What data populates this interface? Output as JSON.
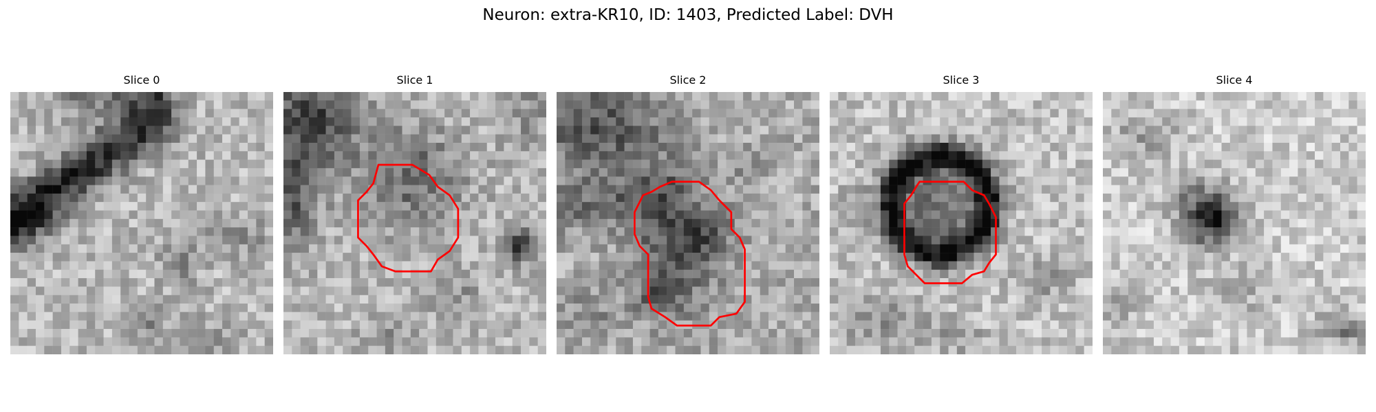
{
  "title": "Neuron: extra-KR10, ID: 1403, Predicted Label: DVH",
  "outline_color": "#ff0000",
  "slices": [
    {
      "label": "Slice 0",
      "has_outline": false
    },
    {
      "label": "Slice 1",
      "has_outline": true
    },
    {
      "label": "Slice 2",
      "has_outline": true
    },
    {
      "label": "Slice 3",
      "has_outline": true
    },
    {
      "label": "Slice 4",
      "has_outline": false
    }
  ]
}
